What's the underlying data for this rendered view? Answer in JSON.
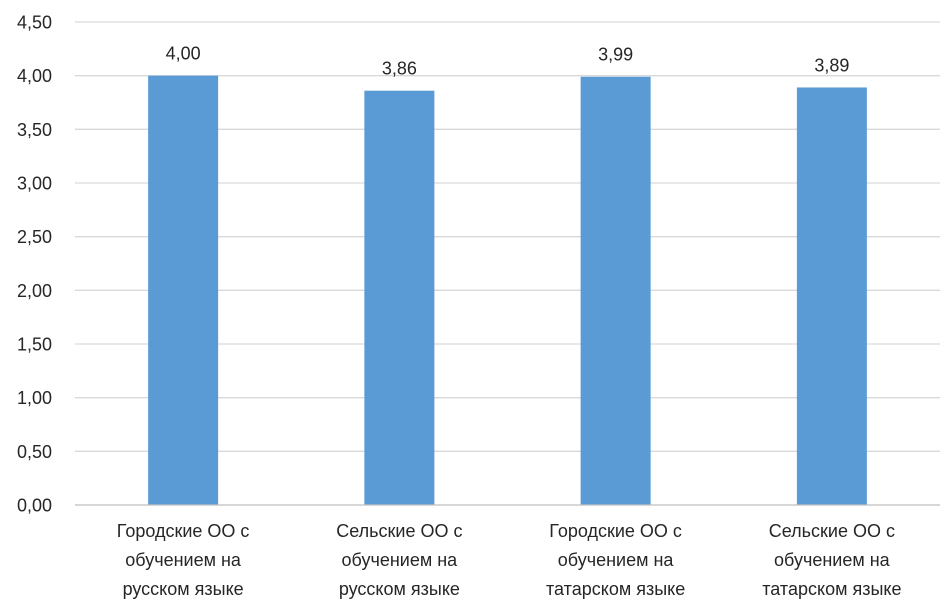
{
  "chart_data": {
    "type": "bar",
    "categories": [
      [
        "Городские ОО с",
        "обучением на",
        "русском языке"
      ],
      [
        "Сельские ОО с",
        "обучением на",
        "русском языке"
      ],
      [
        "Городские ОО с",
        "обучением на",
        "татарском языке"
      ],
      [
        "Сельские ОО с",
        "обучением на",
        "татарском языке"
      ]
    ],
    "values": [
      4.0,
      3.86,
      3.99,
      3.89
    ],
    "value_labels": [
      "4,00",
      "3,86",
      "3,99",
      "3,89"
    ],
    "y_ticks": [
      0,
      0.5,
      1,
      1.5,
      2,
      2.5,
      3,
      3.5,
      4,
      4.5
    ],
    "y_tick_labels": [
      "0,00",
      "0,50",
      "1,00",
      "1,50",
      "2,00",
      "2,50",
      "3,00",
      "3,50",
      "4,00",
      "4,50"
    ],
    "ylim": [
      0,
      4.5
    ],
    "grid": true,
    "legend": "none",
    "colors": {
      "bar": "#5B9BD5",
      "grid": "#D9D9D9",
      "axis": "#BFBFBF",
      "text": "#262626"
    }
  }
}
